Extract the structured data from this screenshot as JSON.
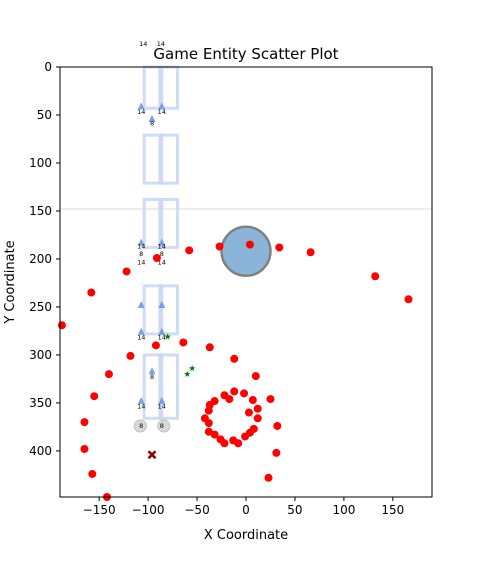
{
  "chart_data": {
    "type": "scatter",
    "title": "Game Entity Scatter Plot",
    "xlabel": "X Coordinate",
    "ylabel": "Y Coordinate",
    "xlim": [
      -190,
      190
    ],
    "ylim": [
      448,
      0
    ],
    "y_inverted": true,
    "grid": false,
    "xticks": [
      -150,
      -100,
      -50,
      0,
      50,
      100,
      150
    ],
    "yticks": [
      0,
      50,
      100,
      150,
      200,
      250,
      300,
      350,
      400
    ],
    "hline": {
      "y": 148,
      "color": "#d9d9d9"
    },
    "player": {
      "x": 0,
      "y": 192,
      "radius": 25,
      "fill": "#8ab4d8",
      "edge": "#808080"
    },
    "colors": {
      "enemy": "#ff0000",
      "item": "#008000",
      "marker": "#8b0000",
      "frame": "#c8d6f5",
      "arrow": "#6f96e6"
    },
    "frames": [
      {
        "x": -104,
        "y": 0,
        "w": 18,
        "h": 43
      },
      {
        "x": -88,
        "y": 0,
        "w": 18,
        "h": 43
      },
      {
        "x": -104,
        "y": 71,
        "w": 18,
        "h": 50
      },
      {
        "x": -88,
        "y": 71,
        "w": 18,
        "h": 50
      },
      {
        "x": -104,
        "y": 138,
        "w": 18,
        "h": 50
      },
      {
        "x": -88,
        "y": 138,
        "w": 18,
        "h": 50
      },
      {
        "x": -104,
        "y": 228,
        "w": 18,
        "h": 50
      },
      {
        "x": -88,
        "y": 228,
        "w": 18,
        "h": 50
      },
      {
        "x": -104,
        "y": 300,
        "w": 18,
        "h": 66
      },
      {
        "x": -88,
        "y": 300,
        "w": 18,
        "h": 66
      }
    ],
    "arrows": [
      {
        "x": -107,
        "y": 41
      },
      {
        "x": -86,
        "y": 41
      },
      {
        "x": -96,
        "y": 54
      },
      {
        "x": -107,
        "y": 183
      },
      {
        "x": -86,
        "y": 183
      },
      {
        "x": -107,
        "y": 248
      },
      {
        "x": -86,
        "y": 248
      },
      {
        "x": -107,
        "y": 276
      },
      {
        "x": -86,
        "y": 276
      },
      {
        "x": -96,
        "y": 317
      },
      {
        "x": -107,
        "y": 348
      },
      {
        "x": -86,
        "y": 348
      }
    ],
    "labels": [
      {
        "x": -105,
        "y": -22,
        "text": "14"
      },
      {
        "x": -87,
        "y": -22,
        "text": "14"
      },
      {
        "x": -107,
        "y": 49,
        "text": "14"
      },
      {
        "x": -86,
        "y": 49,
        "text": "14"
      },
      {
        "x": -96,
        "y": 61,
        "text": "8"
      },
      {
        "x": -107,
        "y": 189,
        "text": "14"
      },
      {
        "x": -86,
        "y": 189,
        "text": "14"
      },
      {
        "x": -107,
        "y": 197,
        "text": "8"
      },
      {
        "x": -86,
        "y": 197,
        "text": "8"
      },
      {
        "x": -107,
        "y": 206,
        "text": "14"
      },
      {
        "x": -86,
        "y": 206,
        "text": "14"
      },
      {
        "x": -107,
        "y": 284,
        "text": "14"
      },
      {
        "x": -86,
        "y": 284,
        "text": "14"
      },
      {
        "x": -96,
        "y": 325,
        "text": "8"
      },
      {
        "x": -107,
        "y": 356,
        "text": "14"
      },
      {
        "x": -86,
        "y": 356,
        "text": "14"
      },
      {
        "x": -107,
        "y": 376,
        "text": "8"
      },
      {
        "x": -86,
        "y": 376,
        "text": "8"
      }
    ],
    "ghosts": [
      {
        "x": -108,
        "y": 374
      },
      {
        "x": -84,
        "y": 374
      }
    ],
    "enemies": [
      {
        "x": -188,
        "y": 269
      },
      {
        "x": -158,
        "y": 235
      },
      {
        "x": -155,
        "y": 343
      },
      {
        "x": -165,
        "y": 370
      },
      {
        "x": -165,
        "y": 398
      },
      {
        "x": -157,
        "y": 424
      },
      {
        "x": -142,
        "y": 448
      },
      {
        "x": -140,
        "y": 320
      },
      {
        "x": -122,
        "y": 213
      },
      {
        "x": -118,
        "y": 301
      },
      {
        "x": -91,
        "y": 199
      },
      {
        "x": -92,
        "y": 290
      },
      {
        "x": -64,
        "y": 287
      },
      {
        "x": -58,
        "y": 191
      },
      {
        "x": -27,
        "y": 187
      },
      {
        "x": -37,
        "y": 292
      },
      {
        "x": -12,
        "y": 304
      },
      {
        "x": 4,
        "y": 185
      },
      {
        "x": 34,
        "y": 188
      },
      {
        "x": 66,
        "y": 193
      },
      {
        "x": 132,
        "y": 218
      },
      {
        "x": 166,
        "y": 242
      },
      {
        "x": 10,
        "y": 322
      },
      {
        "x": -2,
        "y": 340
      },
      {
        "x": -12,
        "y": 338
      },
      {
        "x": -22,
        "y": 342
      },
      {
        "x": -32,
        "y": 348
      },
      {
        "x": -37,
        "y": 352
      },
      {
        "x": -38,
        "y": 358
      },
      {
        "x": -42,
        "y": 366
      },
      {
        "x": -38,
        "y": 371
      },
      {
        "x": -38,
        "y": 380
      },
      {
        "x": -32,
        "y": 383
      },
      {
        "x": -26,
        "y": 388
      },
      {
        "x": -22,
        "y": 392
      },
      {
        "x": -13,
        "y": 389
      },
      {
        "x": -8,
        "y": 392
      },
      {
        "x": -1,
        "y": 385
      },
      {
        "x": 4,
        "y": 381
      },
      {
        "x": 8,
        "y": 377
      },
      {
        "x": 12,
        "y": 366
      },
      {
        "x": 12,
        "y": 356
      },
      {
        "x": 7,
        "y": 347
      },
      {
        "x": 3,
        "y": 360
      },
      {
        "x": -17,
        "y": 346
      },
      {
        "x": 25,
        "y": 346
      },
      {
        "x": 32,
        "y": 374
      },
      {
        "x": 31,
        "y": 402
      },
      {
        "x": 23,
        "y": 428
      }
    ],
    "items": [
      {
        "x": -80,
        "y": 281
      },
      {
        "x": -55,
        "y": 314
      },
      {
        "x": -60,
        "y": 320
      }
    ],
    "markers": [
      {
        "x": -96,
        "y": 404
      }
    ]
  }
}
